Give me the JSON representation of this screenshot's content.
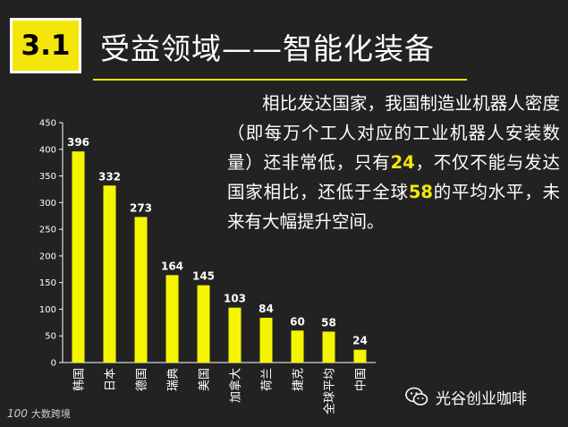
{
  "header": {
    "section_number": "3.1",
    "title": "受益领域——智能化装备"
  },
  "body": {
    "text_parts": [
      {
        "text": "相比发达国家，我国制造业机器人密度（即每万个工人对应的工业机器人安装数量）还非常低，只有",
        "highlight": false
      },
      {
        "text": "24",
        "highlight": true
      },
      {
        "text": "，不仅不能与发达国家相比，还低于全球",
        "highlight": false
      },
      {
        "text": "58",
        "highlight": true
      },
      {
        "text": "的平均水平，未来有大幅提升空间。",
        "highlight": false
      }
    ]
  },
  "chart_data": {
    "type": "bar",
    "categories": [
      "韩国",
      "日本",
      "德国",
      "瑞典",
      "美国",
      "加拿大",
      "荷兰",
      "捷克",
      "全球平均",
      "中国"
    ],
    "values": [
      396,
      332,
      273,
      164,
      145,
      103,
      84,
      60,
      58,
      24
    ],
    "yticks": [
      0,
      50,
      100,
      150,
      200,
      250,
      300,
      350,
      400,
      450
    ],
    "ylim": [
      0,
      450
    ],
    "grid": false,
    "data_labels": true,
    "bar_color": "#f5f500",
    "title": "",
    "xlabel": "",
    "ylabel": ""
  },
  "watermarks": {
    "left_logo": "100",
    "left_text": "大数跨境",
    "right_text": "光谷创业咖啡",
    "right_icon": "wechat-icon"
  },
  "colors": {
    "background": "#222222",
    "accent": "#f5e60a",
    "text": "#ffffff"
  }
}
